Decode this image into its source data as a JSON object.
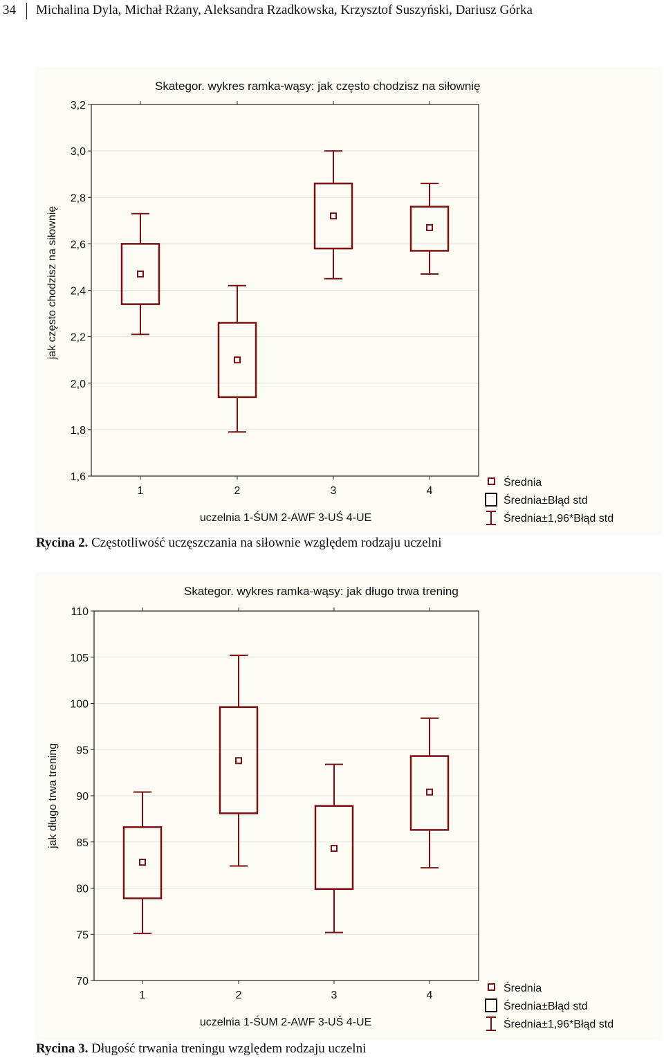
{
  "running_head": {
    "page_number": "34",
    "authors": "Michalina Dyla, Michał Rżany, Aleksandra Rzadkowska, Krzysztof Suszyński, Dariusz Górka"
  },
  "colors": {
    "series": "#7a1010",
    "grid": "#e3e3e3",
    "background": "#fcfcf4"
  },
  "chart_data": [
    {
      "type": "boxplot",
      "title": "Skategor. wykres ramka-wąsy: jak często chodzisz na siłownię",
      "xlabel": "uczelnia 1-ŚUM 2-AWF 3-UŚ 4-UE",
      "ylabel": "jak często chodzisz na siłownię",
      "categories": [
        "1",
        "2",
        "3",
        "4"
      ],
      "ylim": [
        1.6,
        3.2
      ],
      "yticks": [
        1.6,
        1.8,
        2.0,
        2.2,
        2.4,
        2.6,
        2.8,
        3.0,
        3.2
      ],
      "ytick_labels": [
        "1,6",
        "1,8",
        "2,0",
        "2,2",
        "2,4",
        "2,6",
        "2,8",
        "3,0",
        "3,2"
      ],
      "mean": [
        2.47,
        2.1,
        2.72,
        2.67
      ],
      "se_low": [
        2.34,
        1.94,
        2.58,
        2.57
      ],
      "se_high": [
        2.6,
        2.26,
        2.86,
        2.76
      ],
      "ci_low": [
        2.21,
        1.79,
        2.45,
        2.47
      ],
      "ci_high": [
        2.73,
        2.42,
        3.0,
        2.86
      ],
      "legend": [
        "Średnia",
        "Średnia±Błąd std",
        "Średnia±1,96*Błąd std"
      ],
      "caption_label": "Rycina 2.",
      "caption_text": " Częstotliwość uczęszczania na siłownie względem rodzaju uczelni"
    },
    {
      "type": "boxplot",
      "title": "Skategor. wykres ramka-wąsy: jak długo trwa trening",
      "xlabel": "uczelnia 1-ŚUM 2-AWF 3-UŚ 4-UE",
      "ylabel": "jak długo trwa trening",
      "categories": [
        "1",
        "2",
        "3",
        "4"
      ],
      "ylim": [
        70,
        110
      ],
      "yticks": [
        70,
        75,
        80,
        85,
        90,
        95,
        100,
        105,
        110
      ],
      "ytick_labels": [
        "70",
        "75",
        "80",
        "85",
        "90",
        "95",
        "100",
        "105",
        "110"
      ],
      "mean": [
        82.8,
        93.8,
        84.3,
        90.4
      ],
      "se_low": [
        78.9,
        88.1,
        79.9,
        86.3
      ],
      "se_high": [
        86.6,
        99.6,
        88.9,
        94.3
      ],
      "ci_low": [
        75.1,
        82.4,
        75.2,
        82.2
      ],
      "ci_high": [
        90.4,
        105.2,
        93.4,
        98.4
      ],
      "legend": [
        "Średnia",
        "Średnia±Błąd std",
        "Średnia±1,96*Błąd std"
      ],
      "caption_label": "Rycina 3.",
      "caption_text": " Długość trwania treningu względem rodzaju uczelni"
    }
  ]
}
